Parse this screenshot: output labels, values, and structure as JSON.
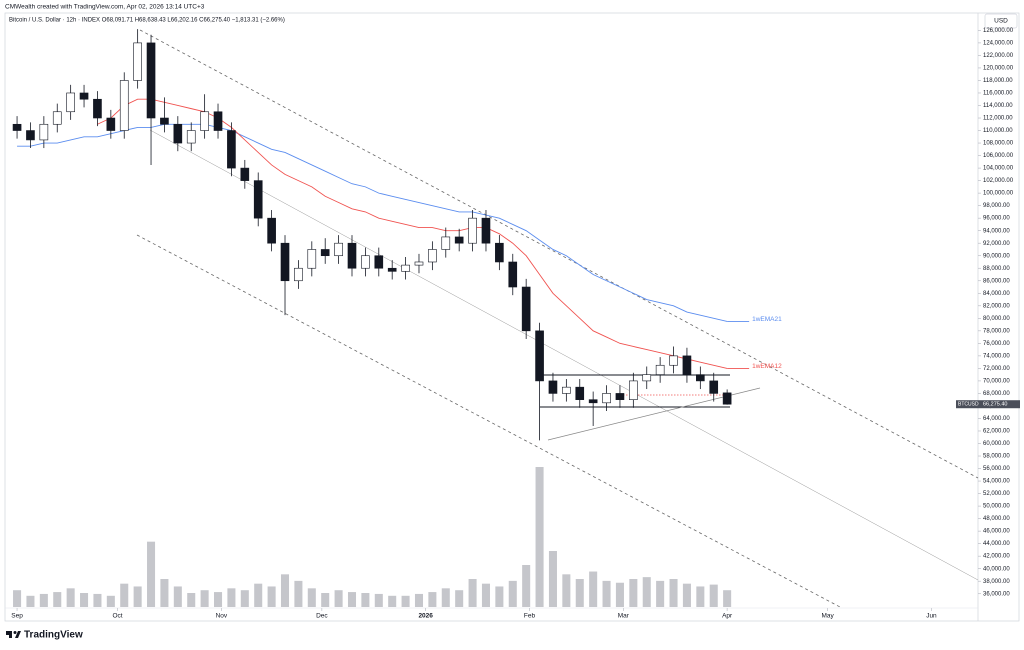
{
  "header": {
    "credit": "CMWealth created with TradingView.com, Apr 02, 2026 13:14 UTC+3",
    "currency": "USD",
    "brand": "TradingView"
  },
  "chart_data": {
    "type": "candlestick",
    "title": "Bitcoin / U.S. Dollar · 12h · INDEX   O68,091.71 H68,638.43 L66,202.16 C66,275.40 −1,813.31 (−2.66%)",
    "x": [
      0,
      4,
      8,
      12,
      16,
      20,
      24,
      28,
      32,
      36,
      40,
      44,
      48,
      52,
      56,
      60,
      64,
      68,
      72,
      76,
      80,
      84,
      88,
      92,
      96,
      100,
      104,
      108,
      112,
      116,
      120,
      124,
      128,
      132,
      136,
      140,
      144,
      148,
      152,
      156,
      160,
      164,
      168,
      172,
      176,
      180,
      184,
      188,
      192,
      196,
      200,
      204,
      208,
      212
    ],
    "open": [
      111000,
      110000,
      108500,
      111000,
      113000,
      116000,
      115000,
      112000,
      110000,
      118000,
      124000,
      112000,
      111000,
      108000,
      110000,
      113000,
      110000,
      104000,
      102000,
      96000,
      92000,
      86000,
      88000,
      91000,
      90000,
      92000,
      88000,
      90000,
      88000,
      87500,
      88500,
      89000,
      91000,
      93000,
      92000,
      96000,
      92000,
      89000,
      85000,
      78000,
      70000,
      68000,
      69000,
      67000,
      66500,
      68000,
      67000,
      70000,
      71000,
      72500,
      74000,
      71000,
      70000,
      68091.71
    ],
    "high": [
      112300,
      111300,
      112300,
      114300,
      117300,
      117300,
      116300,
      113300,
      119300,
      126200,
      125300,
      115300,
      112300,
      111300,
      115800,
      114300,
      111300,
      105300,
      103300,
      97300,
      93300,
      89300,
      92300,
      92800,
      93300,
      93300,
      91300,
      91300,
      89300,
      89800,
      90300,
      92300,
      94500,
      94300,
      97300,
      97300,
      93300,
      90300,
      86300,
      79300,
      71300,
      70300,
      70300,
      68300,
      69300,
      69300,
      71300,
      72300,
      73800,
      75500,
      75300,
      72300,
      71300,
      68638.43
    ],
    "low": [
      108700,
      107200,
      107200,
      109700,
      111700,
      113700,
      110700,
      108700,
      108700,
      116700,
      104500,
      109700,
      106700,
      106700,
      108700,
      108700,
      102700,
      100700,
      94700,
      90700,
      80500,
      84700,
      86700,
      88700,
      88700,
      86700,
      86700,
      86700,
      86200,
      86200,
      87200,
      87700,
      89700,
      90700,
      90700,
      90700,
      87700,
      83700,
      76700,
      60500,
      66700,
      66700,
      65700,
      62800,
      65200,
      65700,
      65700,
      68700,
      69700,
      71200,
      69700,
      68700,
      66700,
      66202.16
    ],
    "close": [
      110000,
      108500,
      111000,
      113000,
      116000,
      115000,
      112000,
      110000,
      118000,
      124000,
      112000,
      111000,
      108000,
      110000,
      113000,
      110000,
      104000,
      102000,
      96000,
      92000,
      86000,
      88000,
      91000,
      90000,
      92000,
      88000,
      90000,
      88000,
      87500,
      88500,
      89000,
      91000,
      93000,
      92000,
      96000,
      92000,
      89000,
      85000,
      78000,
      70000,
      68000,
      69000,
      67000,
      66500,
      68000,
      67000,
      70000,
      71000,
      72500,
      74000,
      71000,
      70000,
      68000,
      66275.4
    ],
    "volume": [
      18,
      12,
      14,
      16,
      20,
      15,
      14,
      12,
      25,
      22,
      70,
      30,
      22,
      15,
      18,
      16,
      20,
      18,
      25,
      22,
      35,
      28,
      20,
      15,
      18,
      16,
      15,
      14,
      12,
      12,
      14,
      16,
      20,
      18,
      30,
      25,
      22,
      28,
      45,
      150,
      60,
      35,
      30,
      38,
      28,
      26,
      30,
      32,
      28,
      30,
      25,
      22,
      24,
      18
    ],
    "series": [
      {
        "name": "1wEMA21",
        "color": "#5b8def",
        "values": [
          107500,
          107500,
          108000,
          108000,
          108500,
          109000,
          109000,
          109500,
          110000,
          110500,
          110500,
          111000,
          111000,
          111000,
          111000,
          110500,
          110000,
          109000,
          108000,
          107000,
          106500,
          105500,
          104500,
          103500,
          102500,
          101500,
          101000,
          100000,
          99500,
          99000,
          98500,
          98000,
          97500,
          97000,
          97000,
          96500,
          96000,
          95000,
          94000,
          92500,
          91000,
          90000,
          88500,
          87000,
          86000,
          85000,
          84000,
          83000,
          82500,
          82000,
          81000,
          80500,
          80000,
          79500
        ]
      },
      {
        "name": "1wEMA12",
        "color": "#f05350",
        "values": [
          null,
          null,
          null,
          null,
          null,
          null,
          111000,
          112000,
          114000,
          115000,
          115000,
          114500,
          114000,
          113500,
          113000,
          112000,
          110500,
          108500,
          106500,
          104500,
          103000,
          102000,
          101000,
          99500,
          98500,
          97500,
          97000,
          96000,
          95500,
          95000,
          94500,
          94500,
          94000,
          94000,
          94500,
          94500,
          93500,
          92000,
          90000,
          87000,
          84000,
          82000,
          80000,
          78000,
          77000,
          76000,
          75500,
          75000,
          74500,
          74000,
          73500,
          73000,
          72500,
          72000
        ]
      }
    ],
    "up_color": "#ffffff",
    "down_color": "#131722",
    "price_tag": {
      "symbol": "BTCUSD",
      "price": "66,275.40"
    },
    "xlim": [
      -3.6,
      286.9
    ],
    "xticks": [
      {
        "value": 0,
        "label": "Sep"
      },
      {
        "value": 30,
        "label": "Oct"
      },
      {
        "value": 61,
        "label": "Nov"
      },
      {
        "value": 91,
        "label": "Dec"
      },
      {
        "value": 122,
        "label": "2026"
      },
      {
        "value": 153,
        "label": "Feb"
      },
      {
        "value": 181,
        "label": "Mar"
      },
      {
        "value": 212,
        "label": "Apr"
      },
      {
        "value": 242,
        "label": "May"
      },
      {
        "value": 273,
        "label": "Jun"
      }
    ],
    "ylim": [
      31643,
      128777
    ],
    "yticks": [
      {
        "value": 36000,
        "label": "36,000.00"
      },
      {
        "value": 38000,
        "label": "38,000.00"
      },
      {
        "value": 40000,
        "label": "40,000.00"
      },
      {
        "value": 42000,
        "label": "42,000.00"
      },
      {
        "value": 44000,
        "label": "44,000.00"
      },
      {
        "value": 46000,
        "label": "46,000.00"
      },
      {
        "value": 48000,
        "label": "48,000.00"
      },
      {
        "value": 50000,
        "label": "50,000.00"
      },
      {
        "value": 52000,
        "label": "52,000.00"
      },
      {
        "value": 54000,
        "label": "54,000.00"
      },
      {
        "value": 56000,
        "label": "56,000.00"
      },
      {
        "value": 58000,
        "label": "58,000.00"
      },
      {
        "value": 60000,
        "label": "60,000.00"
      },
      {
        "value": 62000,
        "label": "62,000.00"
      },
      {
        "value": 64000,
        "label": "64,000.00"
      },
      {
        "value": 66000,
        "label": "66,000.00"
      },
      {
        "value": 68000,
        "label": "68,000.00"
      },
      {
        "value": 70000,
        "label": "70,000.00"
      },
      {
        "value": 72000,
        "label": "72,000.00"
      },
      {
        "value": 74000,
        "label": "74,000.00"
      },
      {
        "value": 76000,
        "label": "76,000.00"
      },
      {
        "value": 78000,
        "label": "78,000.00"
      },
      {
        "value": 80000,
        "label": "80,000.00"
      },
      {
        "value": 82000,
        "label": "82,000.00"
      },
      {
        "value": 84000,
        "label": "84,000.00"
      },
      {
        "value": 86000,
        "label": "86,000.00"
      },
      {
        "value": 88000,
        "label": "88,000.00"
      },
      {
        "value": 90000,
        "label": "90,000.00"
      },
      {
        "value": 92000,
        "label": "92,000.00"
      },
      {
        "value": 94000,
        "label": "94,000.00"
      },
      {
        "value": 96000,
        "label": "96,000.00"
      },
      {
        "value": 98000,
        "label": "98,000.00"
      },
      {
        "value": 100000,
        "label": "100,000.00"
      },
      {
        "value": 102000,
        "label": "102,000.00"
      },
      {
        "value": 104000,
        "label": "104,000.00"
      },
      {
        "value": 106000,
        "label": "106,000.00"
      },
      {
        "value": 108000,
        "label": "108,000.00"
      },
      {
        "value": 110000,
        "label": "110,000.00"
      },
      {
        "value": 112000,
        "label": "112,000.00"
      },
      {
        "value": 114000,
        "label": "114,000.00"
      },
      {
        "value": 116000,
        "label": "116,000.00"
      },
      {
        "value": 118000,
        "label": "118,000.00"
      },
      {
        "value": 120000,
        "label": "120,000.00"
      },
      {
        "value": 122000,
        "label": "122,000.00"
      },
      {
        "value": 124000,
        "label": "124,000.00"
      },
      {
        "value": 126000,
        "label": "126,000.00"
      }
    ],
    "grid": false
  }
}
